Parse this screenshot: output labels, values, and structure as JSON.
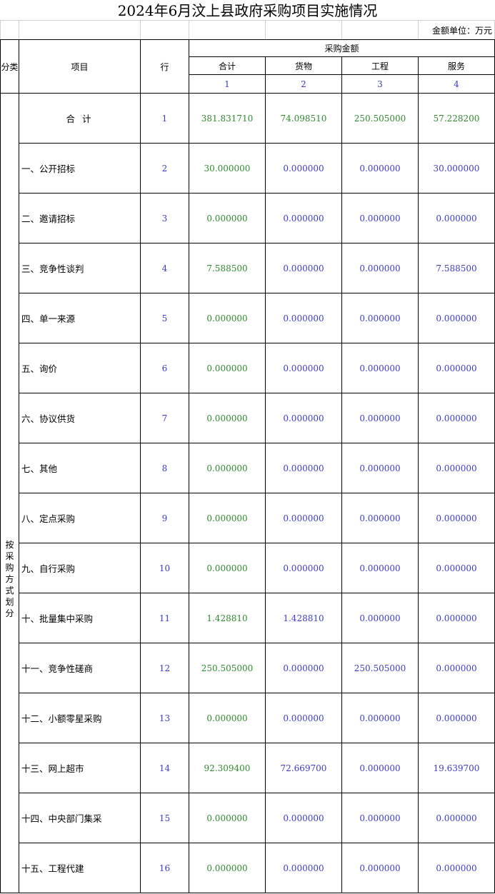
{
  "title": "2024年6月汶上县政府采购项目实施情况",
  "unit_label": "金额单位：万元",
  "header": {
    "category": "分类",
    "item": "项目",
    "row": "行",
    "amount_group": "采购金额",
    "columns": [
      "合计",
      "货物",
      "工程",
      "服务"
    ],
    "column_numbers": [
      "1",
      "2",
      "3",
      "4"
    ]
  },
  "side_category": "按采购方式划分",
  "rows": [
    {
      "label": "合 计",
      "row": "1",
      "total": "381.831710",
      "goods": "74.098510",
      "works": "250.505000",
      "services": "57.228200"
    },
    {
      "label": "一、公开招标",
      "row": "2",
      "total": "30.000000",
      "goods": "0.000000",
      "works": "0.000000",
      "services": "30.000000"
    },
    {
      "label": "二、邀请招标",
      "row": "3",
      "total": "0.000000",
      "goods": "0.000000",
      "works": "0.000000",
      "services": "0.000000"
    },
    {
      "label": "三、竞争性谈判",
      "row": "4",
      "total": "7.588500",
      "goods": "0.000000",
      "works": "0.000000",
      "services": "7.588500"
    },
    {
      "label": "四、单一来源",
      "row": "5",
      "total": "0.000000",
      "goods": "0.000000",
      "works": "0.000000",
      "services": "0.000000"
    },
    {
      "label": "五、询价",
      "row": "6",
      "total": "0.000000",
      "goods": "0.000000",
      "works": "0.000000",
      "services": "0.000000"
    },
    {
      "label": "六、协议供货",
      "row": "7",
      "total": "0.000000",
      "goods": "0.000000",
      "works": "0.000000",
      "services": "0.000000"
    },
    {
      "label": "七、其他",
      "row": "8",
      "total": "0.000000",
      "goods": "0.000000",
      "works": "0.000000",
      "services": "0.000000"
    },
    {
      "label": "八、定点采购",
      "row": "9",
      "total": "0.000000",
      "goods": "0.000000",
      "works": "0.000000",
      "services": "0.000000"
    },
    {
      "label": "九、自行采购",
      "row": "10",
      "total": "0.000000",
      "goods": "0.000000",
      "works": "0.000000",
      "services": "0.000000"
    },
    {
      "label": "十、批量集中采购",
      "row": "11",
      "total": "1.428810",
      "goods": "1.428810",
      "works": "0.000000",
      "services": "0.000000"
    },
    {
      "label": "十一、竞争性磋商",
      "row": "12",
      "total": "250.505000",
      "goods": "0.000000",
      "works": "250.505000",
      "services": "0.000000"
    },
    {
      "label": "十二、小额零星采购",
      "row": "13",
      "total": "0.000000",
      "goods": "0.000000",
      "works": "0.000000",
      "services": "0.000000"
    },
    {
      "label": "十三、网上超市",
      "row": "14",
      "total": "92.309400",
      "goods": "72.669700",
      "works": "0.000000",
      "services": "19.639700"
    },
    {
      "label": "十四、中央部门集采",
      "row": "15",
      "total": "0.000000",
      "goods": "0.000000",
      "works": "0.000000",
      "services": "0.000000"
    },
    {
      "label": "十五、工程代建",
      "row": "16",
      "total": "0.000000",
      "goods": "0.000000",
      "works": "0.000000",
      "services": "0.000000"
    }
  ],
  "colors": {
    "total_text": "#2f8a2f",
    "number_text": "#3b3bd0",
    "grid": "#000000"
  }
}
